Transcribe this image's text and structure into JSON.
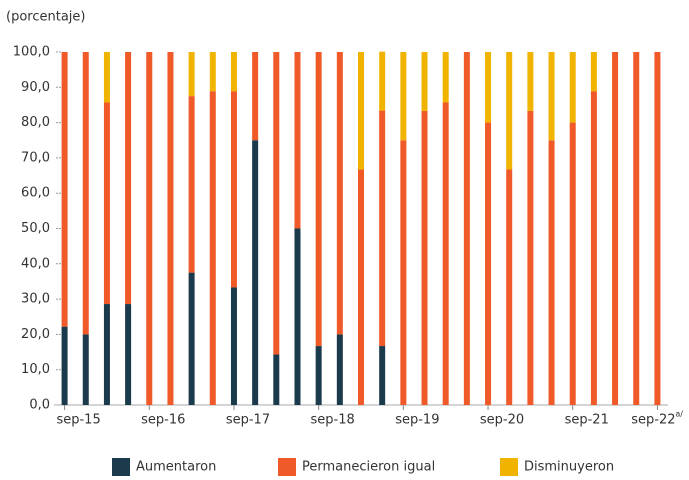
{
  "chart_data": {
    "type": "stacked_bar",
    "subtitle": "(porcentaje)",
    "categories": [
      "sep-15",
      null,
      null,
      null,
      "sep-16",
      null,
      null,
      null,
      "sep-17",
      null,
      null,
      null,
      "sep-18",
      null,
      null,
      null,
      "sep-19",
      null,
      null,
      null,
      "sep-20",
      null,
      null,
      null,
      "sep-21",
      null,
      null,
      null,
      "sep-22"
    ],
    "last_label_note": "a/",
    "series": [
      {
        "name": "Aumentaron",
        "color": "#1b3a4b",
        "values": [
          22.2,
          20,
          28.6,
          28.6,
          0,
          0,
          37.5,
          0,
          33.3,
          75,
          14.3,
          50,
          16.7,
          20,
          0,
          16.7,
          0,
          0,
          0,
          0,
          0,
          0,
          0,
          0,
          0,
          0,
          0,
          0,
          0
        ]
      },
      {
        "name": "Permanecieron igual",
        "color": "#f05a28",
        "values": [
          77.8,
          80,
          57.1,
          71.4,
          100,
          100,
          50,
          88.9,
          55.6,
          25,
          85.7,
          50,
          83.3,
          80,
          66.7,
          66.7,
          75,
          83.3,
          85.7,
          100,
          80,
          66.7,
          83.3,
          75,
          80,
          88.9,
          100,
          100,
          100
        ]
      },
      {
        "name": "Disminuyeron",
        "color": "#f0b400",
        "values": [
          0,
          0,
          14.3,
          0,
          0,
          0,
          12.5,
          11.1,
          11.1,
          0,
          0,
          0,
          0,
          0,
          33.3,
          16.7,
          25,
          16.7,
          14.3,
          0,
          20,
          33.3,
          16.7,
          25,
          20,
          11.1,
          0,
          0,
          0
        ]
      }
    ],
    "ylim": [
      0,
      100
    ],
    "yticks": [
      {
        "value": 0,
        "label": "0,0"
      },
      {
        "value": 10,
        "label": "10,0"
      },
      {
        "value": 20,
        "label": "20,0"
      },
      {
        "value": 30,
        "label": "30,0"
      },
      {
        "value": 40,
        "label": "40,0"
      },
      {
        "value": 50,
        "label": "50,0"
      },
      {
        "value": 60,
        "label": "60,0"
      },
      {
        "value": 70,
        "label": "70,0"
      },
      {
        "value": 80,
        "label": "80,0"
      },
      {
        "value": 90,
        "label": "90,0"
      },
      {
        "value": 100,
        "label": "100,0"
      }
    ],
    "legend": "bottom"
  }
}
